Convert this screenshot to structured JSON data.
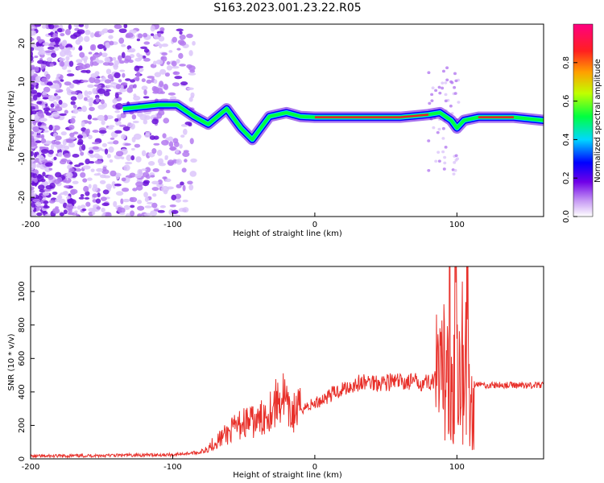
{
  "title": "S163.2023.001.23.22.R05",
  "colors": {
    "snr_line": "#e8302a",
    "ridge": "#e8202a"
  },
  "chart_data": [
    {
      "type": "heatmap",
      "xlabel": "Height of straight line (km)",
      "ylabel": "Frequency (Hz)",
      "xlim": [
        -200,
        161
      ],
      "ylim": [
        -25,
        25
      ],
      "x_ticks": [
        -200,
        -100,
        0,
        100
      ],
      "y_ticks": [
        20,
        10,
        0,
        -10,
        -20
      ],
      "colorbar": {
        "label": "Normalized spectral amplitude",
        "range": [
          0,
          1
        ],
        "ticks": [
          0.0,
          0.2,
          0.4,
          0.6,
          0.8
        ],
        "colors": [
          "#ffffff",
          "#b070f0",
          "#6000e0",
          "#0000ff",
          "#00d8ff",
          "#00ff40",
          "#c0ff00",
          "#ffa000",
          "#ff2020",
          "#ff0080"
        ]
      },
      "ridge": [
        {
          "x": -135,
          "y": 3
        },
        {
          "x": -110,
          "y": 4
        },
        {
          "x": -97,
          "y": 4
        },
        {
          "x": -85,
          "y": 1
        },
        {
          "x": -75,
          "y": -1
        },
        {
          "x": -62,
          "y": 3
        },
        {
          "x": -52,
          "y": -2
        },
        {
          "x": -44,
          "y": -5
        },
        {
          "x": -38,
          "y": -2
        },
        {
          "x": -32,
          "y": 1
        },
        {
          "x": -20,
          "y": 2
        },
        {
          "x": -10,
          "y": 1
        },
        {
          "x": 0,
          "y": 0.8
        },
        {
          "x": 30,
          "y": 0.8
        },
        {
          "x": 60,
          "y": 0.8
        },
        {
          "x": 80,
          "y": 1.5
        },
        {
          "x": 88,
          "y": 2
        },
        {
          "x": 96,
          "y": 0
        },
        {
          "x": 100,
          "y": -2
        },
        {
          "x": 105,
          "y": 0
        },
        {
          "x": 115,
          "y": 0.8
        },
        {
          "x": 140,
          "y": 0.8
        },
        {
          "x": 161,
          "y": 0
        }
      ]
    },
    {
      "type": "line",
      "xlabel": "Height of straight line (km)",
      "ylabel": "SNR (10 * v/v)",
      "xlim": [
        -200,
        161
      ],
      "ylim": [
        0,
        1150
      ],
      "x_ticks": [
        -200,
        -100,
        0,
        100
      ],
      "y_ticks": [
        0,
        200,
        400,
        600,
        800,
        1000
      ],
      "series": [
        {
          "x": [
            -200,
            -150,
            -100,
            -80,
            -70,
            -60,
            -50,
            -40,
            -30,
            -22,
            -18,
            -10,
            0,
            10,
            20,
            30,
            40,
            50,
            60,
            70,
            80,
            85,
            90,
            93,
            95,
            97,
            99,
            101,
            103,
            105,
            107,
            109,
            111,
            120,
            130,
            140,
            150,
            161
          ],
          "y": [
            15,
            20,
            25,
            40,
            100,
            160,
            220,
            220,
            310,
            380,
            260,
            300,
            330,
            380,
            420,
            450,
            460,
            460,
            460,
            460,
            460,
            470,
            440,
            700,
            1000,
            250,
            1150,
            150,
            900,
            300,
            1040,
            200,
            450,
            440,
            440,
            440,
            440,
            440
          ]
        }
      ]
    }
  ]
}
